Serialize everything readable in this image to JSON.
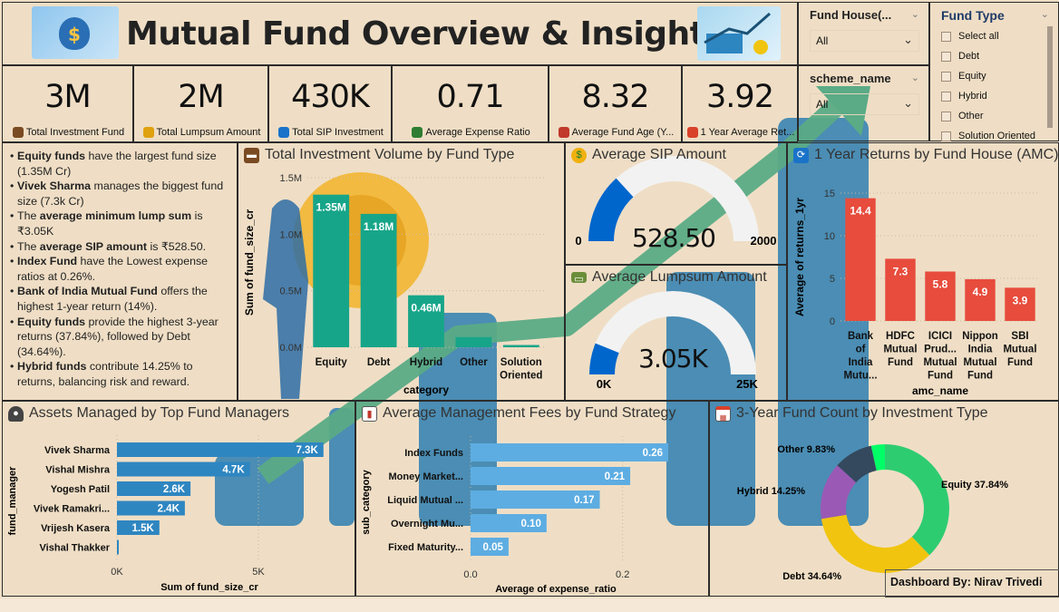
{
  "header": {
    "title": "Mutual Fund Overview & Insights"
  },
  "kpis": [
    {
      "value": "3M",
      "label": "Total Investment Fund",
      "icon": "briefcase-icon"
    },
    {
      "value": "2M",
      "label": "Total Lumpsum Amount",
      "icon": "money-bag-icon"
    },
    {
      "value": "430K",
      "label": "Total SIP Investment",
      "icon": "refresh-icon"
    },
    {
      "value": "0.71",
      "label": "Average Expense Ratio",
      "icon": "bar-chart-icon"
    },
    {
      "value": "8.32",
      "label": "Average Fund Age (Y...",
      "icon": "calendar-icon"
    },
    {
      "value": "3.92",
      "label": "1 Year Average Ret...",
      "icon": "trend-chart-icon"
    }
  ],
  "slicers": {
    "fund_house": {
      "title": "Fund House(...",
      "value": "All"
    },
    "scheme_name": {
      "title": "scheme_name",
      "value": "All"
    },
    "fund_type": {
      "title": "Fund Type",
      "options": [
        "Select all",
        "Debt",
        "Equity",
        "Hybrid",
        "Other",
        "Solution Oriented"
      ]
    }
  },
  "insights": [
    {
      "bold": "Equity funds",
      "text": " have the largest fund size (1.35M Cr)"
    },
    {
      "bold": "Vivek Sharma",
      "text": " manages the biggest fund size (7.3k Cr)"
    },
    {
      "pre": "The ",
      "bold": "average minimum lump sum",
      "text": " is ₹3.05K"
    },
    {
      "pre": "The ",
      "bold": "average SIP amount",
      "text": " is ₹528.50."
    },
    {
      "bold": "Index Fund",
      "text": " have the Lowest expense ratios at 0.26%."
    },
    {
      "bold": "Bank of India Mutual Fund",
      "text": " offers the highest 1-year return (14%)."
    },
    {
      "bold": "Equity funds",
      "text": " provide the highest 3-year returns (37.84%), followed by Debt (34.64%)."
    },
    {
      "bold": "Hybrid funds",
      "text": " contribute 14.25% to returns, balancing risk and reward."
    }
  ],
  "footer": {
    "credit": "Dashboard By: Nirav Trivedi"
  },
  "colors": {
    "background": "#efdec5",
    "investment_bar": "#17a589",
    "amc_bar": "#e74c3c",
    "manager_bar": "#2e86c1",
    "fees_bar": "#5dade2",
    "gauge_fill": "#0066cc",
    "gauge_track": "#f2f2f2"
  },
  "chart_data": [
    {
      "id": "investment",
      "type": "bar",
      "title": "Total Investment Volume by Fund Type",
      "icon": "briefcase-icon",
      "xlabel": "category",
      "ylabel": "Sum of fund_size_cr",
      "categories": [
        "Equity",
        "Debt",
        "Hybrid",
        "Other",
        "Solution\nOriented"
      ],
      "values": [
        1.35,
        1.18,
        0.46,
        0.09,
        0.02
      ],
      "data_labels": [
        "1.35M",
        "1.18M",
        "0.46M",
        "",
        ""
      ],
      "yticks": [
        "0.0M",
        "0.5M",
        "1.0M",
        "1.5M"
      ],
      "ylim": [
        0,
        1.5
      ],
      "unit": "M",
      "grid": true
    },
    {
      "id": "sip",
      "type": "gauge",
      "title": "Average SIP Amount",
      "icon": "money-bag-icon",
      "value": 528.5,
      "value_label": "528.50",
      "min": 0,
      "max": 2000,
      "min_label": "0",
      "max_label": "2000"
    },
    {
      "id": "lumpsum",
      "type": "gauge",
      "title": "Average Lumpsum Amount",
      "icon": "cash-icon",
      "value": 3050,
      "value_label": "3.05K",
      "min": 0,
      "max": 25000,
      "min_label": "0K",
      "max_label": "25K"
    },
    {
      "id": "amc",
      "type": "bar",
      "title": "1 Year Returns by Fund House (AMC)",
      "icon": "refresh-icon",
      "xlabel": "amc_name",
      "ylabel": "Average of returns_1yr",
      "categories": [
        "Bank\nof\nIndia\nMutu...",
        "HDFC\nMutual\nFund",
        "ICICI\nPrud...\nMutual\nFund",
        "Nippon\nIndia\nMutual\nFund",
        "SBI\nMutual\nFund"
      ],
      "values": [
        14.4,
        7.3,
        5.8,
        4.9,
        3.9
      ],
      "data_labels": [
        "14.4",
        "7.3",
        "5.8",
        "4.9",
        "3.9"
      ],
      "yticks": [
        "0",
        "5",
        "10",
        "15"
      ],
      "ylim": [
        0,
        15
      ],
      "grid": true
    },
    {
      "id": "managers",
      "type": "bar",
      "orientation": "horizontal",
      "title": "Assets Managed by Top Fund Managers",
      "icon": "person-icon",
      "xlabel": "Sum of fund_size_cr",
      "ylabel": "fund_manager",
      "categories": [
        "Vivek Sharma",
        "Vishal Mishra",
        "Yogesh Patil",
        "Vivek Ramakri...",
        "Vrijesh Kasera",
        "Vishal Thakker"
      ],
      "values": [
        7.3,
        4.7,
        2.6,
        2.4,
        1.5,
        0.05
      ],
      "data_labels": [
        "7.3K",
        "4.7K",
        "2.6K",
        "2.4K",
        "1.5K",
        ""
      ],
      "xticks": [
        "0K",
        "5K"
      ],
      "xtick_values": [
        0,
        5
      ],
      "xlim": [
        0,
        7.5
      ],
      "unit": "K",
      "grid": true
    },
    {
      "id": "fees",
      "type": "bar",
      "orientation": "horizontal",
      "title": "Average Management Fees by Fund Strategy",
      "icon": "bar-chart-icon",
      "xlabel": "Average of expense_ratio",
      "ylabel": "sub_category",
      "categories": [
        "Index Funds",
        "Money Market...",
        "Liquid Mutual ...",
        "Overnight Mu...",
        "Fixed Maturity..."
      ],
      "values": [
        0.26,
        0.21,
        0.17,
        0.1,
        0.05
      ],
      "data_labels": [
        "0.26",
        "0.21",
        "0.17",
        "0.10",
        "0.05"
      ],
      "xticks": [
        "0.0",
        "0.2"
      ],
      "xtick_values": [
        0,
        0.2
      ],
      "xlim": [
        0,
        0.26
      ],
      "grid": true
    },
    {
      "id": "donut",
      "type": "pie",
      "style": "donut",
      "title": "3-Year Fund Count by Investment Type",
      "icon": "calendar-icon",
      "slices": [
        {
          "label": "Equity 37.84%",
          "value": 37.84,
          "color": "#2ecc71"
        },
        {
          "label": "Debt 34.64%",
          "value": 34.64,
          "color": "#f1c40f"
        },
        {
          "label": "Hybrid 14.25%",
          "value": 14.25,
          "color": "#9b59b6"
        },
        {
          "label": "Other 9.83%",
          "value": 9.83,
          "color": "#34495e"
        },
        {
          "label": "",
          "value": 3.44,
          "color": "#00ff66"
        }
      ]
    }
  ]
}
